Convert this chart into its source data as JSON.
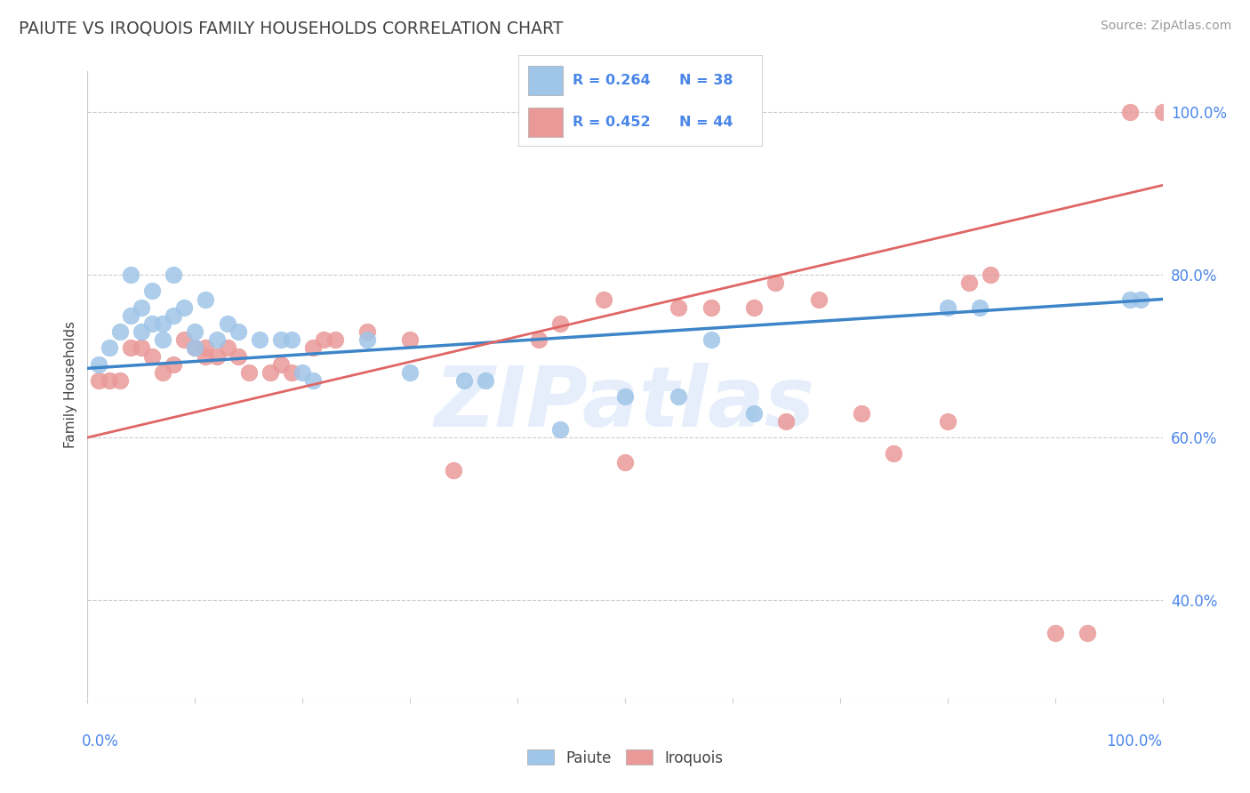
{
  "title": "PAIUTE VS IROQUOIS FAMILY HOUSEHOLDS CORRELATION CHART",
  "source": "Source: ZipAtlas.com",
  "ylabel": "Family Households",
  "xlim": [
    0,
    1.0
  ],
  "ylim": [
    0.28,
    1.05
  ],
  "y_tick_vals": [
    0.4,
    0.6,
    0.8,
    1.0
  ],
  "legend_text_color": "#3c5fa0",
  "blue_color": "#9fc5e8",
  "pink_color": "#ea9999",
  "blue_line_color": "#3d85c8",
  "pink_line_color": "#e06666",
  "watermark": "ZIPatlas",
  "blue_x": [
    0.01,
    0.02,
    0.03,
    0.04,
    0.04,
    0.05,
    0.05,
    0.06,
    0.06,
    0.07,
    0.07,
    0.08,
    0.08,
    0.09,
    0.1,
    0.1,
    0.11,
    0.12,
    0.13,
    0.14,
    0.16,
    0.18,
    0.19,
    0.2,
    0.21,
    0.26,
    0.3,
    0.35,
    0.37,
    0.44,
    0.5,
    0.55,
    0.58,
    0.62,
    0.8,
    0.83,
    0.97,
    0.98
  ],
  "blue_y": [
    0.69,
    0.71,
    0.73,
    0.75,
    0.8,
    0.73,
    0.76,
    0.78,
    0.74,
    0.74,
    0.72,
    0.75,
    0.8,
    0.76,
    0.73,
    0.71,
    0.77,
    0.72,
    0.74,
    0.73,
    0.72,
    0.72,
    0.72,
    0.68,
    0.67,
    0.72,
    0.68,
    0.67,
    0.67,
    0.61,
    0.65,
    0.65,
    0.72,
    0.63,
    0.76,
    0.76,
    0.77,
    0.77
  ],
  "pink_x": [
    0.01,
    0.02,
    0.03,
    0.04,
    0.05,
    0.06,
    0.07,
    0.08,
    0.09,
    0.1,
    0.11,
    0.11,
    0.12,
    0.13,
    0.14,
    0.15,
    0.17,
    0.18,
    0.19,
    0.21,
    0.22,
    0.23,
    0.26,
    0.3,
    0.34,
    0.42,
    0.44,
    0.48,
    0.5,
    0.55,
    0.58,
    0.62,
    0.64,
    0.65,
    0.68,
    0.72,
    0.75,
    0.8,
    0.82,
    0.84,
    0.9,
    0.93,
    0.97,
    1.0
  ],
  "pink_y": [
    0.67,
    0.67,
    0.67,
    0.71,
    0.71,
    0.7,
    0.68,
    0.69,
    0.72,
    0.71,
    0.71,
    0.7,
    0.7,
    0.71,
    0.7,
    0.68,
    0.68,
    0.69,
    0.68,
    0.71,
    0.72,
    0.72,
    0.73,
    0.72,
    0.56,
    0.72,
    0.74,
    0.77,
    0.57,
    0.76,
    0.76,
    0.76,
    0.79,
    0.62,
    0.77,
    0.63,
    0.58,
    0.62,
    0.79,
    0.8,
    0.36,
    0.36,
    1.0,
    1.0
  ],
  "grid_color": "#cccccc",
  "background_color": "#ffffff",
  "title_color": "#434343",
  "source_color": "#999999",
  "right_label_color": "#4a86e8",
  "label_color": "#434343"
}
